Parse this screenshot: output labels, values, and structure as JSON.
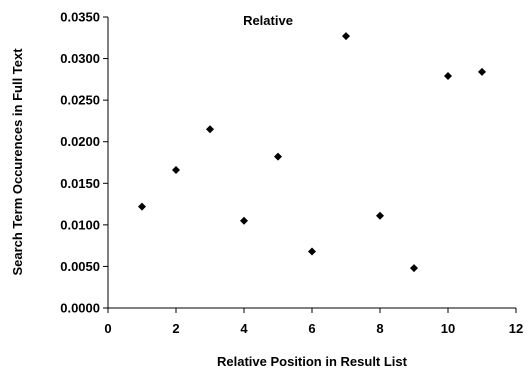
{
  "chart_data": {
    "type": "scatter",
    "title": "Relative",
    "xlabel": "Relative Position in Result List",
    "ylabel": "Search Term Occurences in Full Text",
    "xlim": [
      0,
      12
    ],
    "ylim": [
      0,
      0.035
    ],
    "x_ticks": [
      "0",
      "2",
      "4",
      "6",
      "8",
      "10",
      "12"
    ],
    "y_ticks": [
      "0.0000",
      "0.0050",
      "0.0100",
      "0.0150",
      "0.0200",
      "0.0250",
      "0.0300",
      "0.0350"
    ],
    "grid": false,
    "legend": "none",
    "marker": "diamond",
    "marker_color": "#000000",
    "series": [
      {
        "x": [
          1,
          2,
          3,
          4,
          5,
          6,
          7,
          8,
          9,
          10,
          11
        ],
        "y": [
          0.0122,
          0.0166,
          0.0215,
          0.0105,
          0.0182,
          0.0068,
          0.0327,
          0.0111,
          0.0048,
          0.0279,
          0.0284
        ]
      }
    ]
  }
}
